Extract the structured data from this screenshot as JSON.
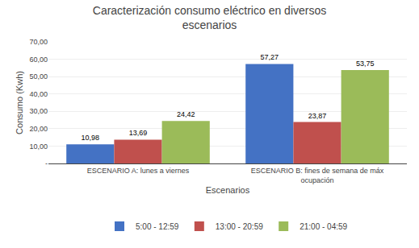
{
  "chart_data": {
    "type": "bar",
    "title": "Caracterización consumo eléctrico en diversos\nescenarios",
    "xlabel": "Escenarios",
    "ylabel": "Consumo (Kwh)",
    "categories": [
      "ESCENARIO A: lunes a viernes",
      "ESCENARIO B: fines de semana de máx\nocupación"
    ],
    "series": [
      {
        "name": "5:00 - 12:59",
        "color": "#4472C4",
        "values": [
          10.98,
          57.27
        ],
        "value_labels": [
          "10,98",
          "57,27"
        ]
      },
      {
        "name": "13:00 - 20:59",
        "color": "#C0504D",
        "values": [
          13.69,
          23.87
        ],
        "value_labels": [
          "13,69",
          "23,87"
        ]
      },
      {
        "name": "21:00 - 04:59",
        "color": "#9BBB59",
        "values": [
          24.42,
          53.75
        ],
        "value_labels": [
          "24,42",
          "53,75"
        ]
      }
    ],
    "ylim": [
      0,
      70
    ],
    "yticks": [
      {
        "value": 0,
        "label": "-"
      },
      {
        "value": 10,
        "label": "10,00"
      },
      {
        "value": 20,
        "label": "20,00"
      },
      {
        "value": 30,
        "label": "30,00"
      },
      {
        "value": 40,
        "label": "40,00"
      },
      {
        "value": 50,
        "label": "50,00"
      },
      {
        "value": 60,
        "label": "60,00"
      },
      {
        "value": 70,
        "label": "70,00"
      }
    ],
    "grid": true,
    "legend": "bottom",
    "data_labels": true
  }
}
